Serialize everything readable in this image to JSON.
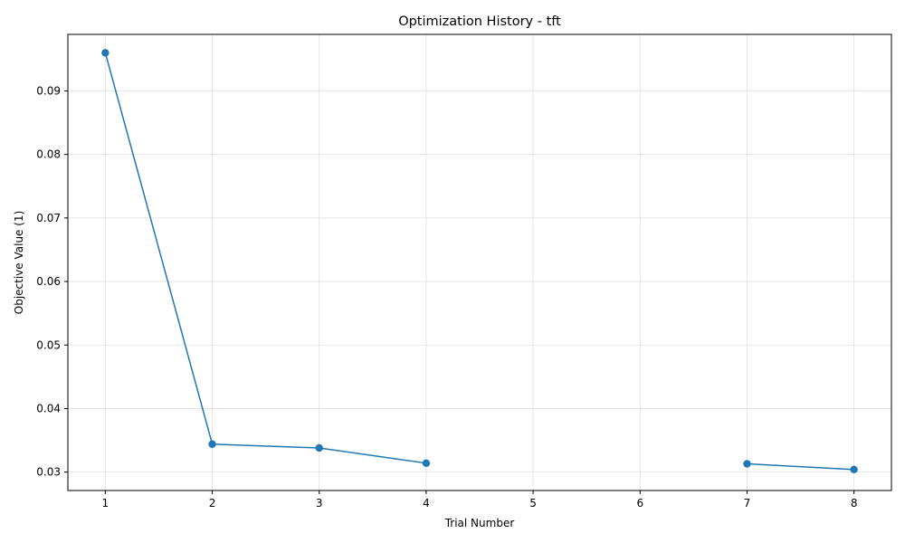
{
  "chart_data": {
    "type": "line",
    "title": "Optimization History - tft",
    "xlabel": "Trial Number",
    "ylabel": "Objective Value (1)",
    "x_ticks": [
      1,
      2,
      3,
      4,
      5,
      6,
      7,
      8
    ],
    "y_ticks": [
      0.03,
      0.04,
      0.05,
      0.06,
      0.07,
      0.08,
      0.09
    ],
    "y_tick_labels": [
      "0.03",
      "0.04",
      "0.05",
      "0.06",
      "0.07",
      "0.08",
      "0.09"
    ],
    "xlim": [
      0.65,
      8.35
    ],
    "ylim": [
      0.0271,
      0.0989
    ],
    "grid": true,
    "colors": {
      "line": "#1f77b4",
      "grid": "#e0e0e0",
      "axis": "#000000"
    },
    "series": [
      {
        "segments": [
          [
            {
              "x": 1,
              "y": 0.096
            },
            {
              "x": 2,
              "y": 0.0344
            },
            {
              "x": 3,
              "y": 0.0338
            },
            {
              "x": 4,
              "y": 0.0314
            }
          ],
          [
            {
              "x": 7,
              "y": 0.0313
            },
            {
              "x": 8,
              "y": 0.0304
            }
          ]
        ]
      }
    ]
  }
}
